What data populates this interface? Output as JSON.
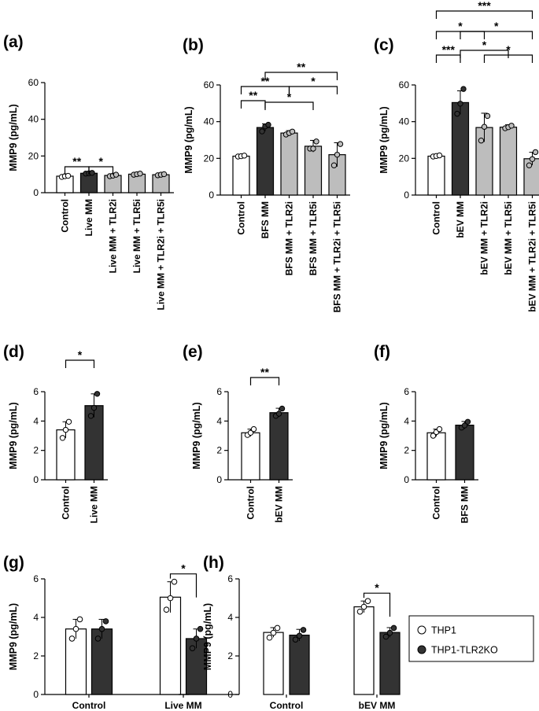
{
  "figure": {
    "legend": {
      "items": [
        {
          "label": "THP1",
          "color": "#ffffff"
        },
        {
          "label": "THP1-TLR2KO",
          "color": "#333333"
        }
      ]
    }
  },
  "chart_data": [
    {
      "id": "a",
      "panel_label": "(a)",
      "type": "bar",
      "ylabel": "MMP9 (pg/mL)",
      "ylim": [
        0,
        60
      ],
      "yticks": [
        0,
        20,
        40,
        60
      ],
      "categories": [
        "Control",
        "Live MM",
        "Live MM + TLR2i",
        "Live MM + TLR5i",
        "Live MM + TLR2i + TLR5i"
      ],
      "values": [
        9,
        10.6,
        9.4,
        10.1,
        9.8
      ],
      "errors": [
        0.4,
        0.3,
        0.5,
        0.4,
        0.4
      ],
      "points": [
        [
          8.6,
          9,
          9.2
        ],
        [
          10.4,
          10.6,
          10.8
        ],
        [
          9,
          9.3,
          9.8
        ],
        [
          9.8,
          10.1,
          10.4
        ],
        [
          9.5,
          9.8,
          10.1
        ]
      ],
      "colors": [
        "#ffffff",
        "#333333",
        "#bdbdbd",
        "#bdbdbd",
        "#bdbdbd"
      ],
      "brackets": [
        {
          "from": 0,
          "to": 1,
          "text": "**"
        },
        {
          "from": 1,
          "to": 2,
          "text": "*"
        }
      ]
    },
    {
      "id": "b",
      "panel_label": "(b)",
      "type": "bar",
      "ylabel": "MMP9 (pg/mL)",
      "ylim": [
        0,
        60
      ],
      "yticks": [
        0,
        20,
        40,
        60
      ],
      "categories": [
        "Control",
        "BFS MM",
        "BFS MM + TLR2i",
        "BFS MM + TLR5i",
        "BFS MM + TLR2i + TLR5i"
      ],
      "values": [
        21.2,
        36.8,
        33.8,
        26.6,
        22
      ],
      "errors": [
        0.5,
        2,
        1.3,
        3.2,
        6.5
      ],
      "points": [
        [
          21,
          21.2,
          21.5
        ],
        [
          34.7,
          37.4,
          38.3
        ],
        [
          33,
          33.8,
          34.6
        ],
        [
          25.3,
          25.3,
          29.2
        ],
        [
          16.2,
          22,
          27.8
        ]
      ],
      "colors": [
        "#ffffff",
        "#333333",
        "#bdbdbd",
        "#bdbdbd",
        "#bdbdbd"
      ],
      "brackets": [
        {
          "from": 0,
          "to": 1,
          "text": "**"
        },
        {
          "from": 0,
          "to": 2,
          "text": "**"
        },
        {
          "from": 1,
          "to": 3,
          "text": "*"
        },
        {
          "from": 2,
          "to": 4,
          "text": "*"
        },
        {
          "from": 1,
          "to": 4,
          "text": "**"
        }
      ]
    },
    {
      "id": "c",
      "panel_label": "(c)",
      "type": "bar",
      "ylabel": "MMP9 (pg/mL)",
      "ylim": [
        0,
        60
      ],
      "yticks": [
        0,
        20,
        40,
        60
      ],
      "categories": [
        "Control",
        "bEV MM",
        "bEV MM + TLR2i",
        "bEV MM + TLR5i",
        "bEV MM + TLR2i + TLR5i"
      ],
      "values": [
        21.2,
        50.4,
        36.8,
        37,
        19.8
      ],
      "errors": [
        0.6,
        6.4,
        7.8,
        1.3,
        3.5
      ],
      "points": [
        [
          21,
          21.3,
          21.6
        ],
        [
          44.3,
          49.8,
          57.8
        ],
        [
          29.7,
          37.2,
          43.1
        ],
        [
          36.4,
          37,
          37.8
        ],
        [
          16.2,
          19.6,
          23.4
        ]
      ],
      "colors": [
        "#ffffff",
        "#333333",
        "#bdbdbd",
        "#bdbdbd",
        "#bdbdbd"
      ],
      "brackets": [
        {
          "from": 0,
          "to": 1,
          "text": "***"
        },
        {
          "from": 0,
          "to": 2,
          "text": "*"
        },
        {
          "from": 2,
          "to": 4,
          "text": "*"
        },
        {
          "from": 1,
          "to": 3,
          "text": "*"
        },
        {
          "from": 1,
          "to": 4,
          "text": "*"
        },
        {
          "from": 0,
          "to": 4,
          "text": "***"
        }
      ]
    },
    {
      "id": "d",
      "panel_label": "(d)",
      "type": "bar",
      "ylabel": "MMP9 (pg/mL)",
      "ylim": [
        0,
        6
      ],
      "yticks": [
        0,
        2,
        4,
        6
      ],
      "categories": [
        "Control",
        "Live MM"
      ],
      "values": [
        3.4,
        5.05
      ],
      "errors": [
        0.55,
        0.8
      ],
      "points": [
        [
          2.85,
          3.4,
          3.95
        ],
        [
          4.35,
          4.9,
          5.85
        ]
      ],
      "colors": [
        "#ffffff",
        "#333333"
      ],
      "brackets": [
        {
          "from": 0,
          "to": 1,
          "text": "*"
        }
      ]
    },
    {
      "id": "e",
      "panel_label": "(e)",
      "type": "bar",
      "ylabel": "MMP9 (pg/mL)",
      "ylim": [
        0,
        6
      ],
      "yticks": [
        0,
        2,
        4,
        6
      ],
      "categories": [
        "Control",
        "bEV MM"
      ],
      "values": [
        3.2,
        4.57
      ],
      "errors": [
        0.25,
        0.3
      ],
      "points": [
        [
          3.05,
          3.2,
          3.45
        ],
        [
          4.35,
          4.5,
          4.85
        ]
      ],
      "colors": [
        "#ffffff",
        "#333333"
      ],
      "brackets": [
        {
          "from": 0,
          "to": 1,
          "text": "**"
        }
      ]
    },
    {
      "id": "f",
      "panel_label": "(f)",
      "type": "bar",
      "ylabel": "MMP9 (pg/mL)",
      "ylim": [
        0,
        6
      ],
      "yticks": [
        0,
        2,
        4,
        6
      ],
      "categories": [
        "Control",
        "BFS MM"
      ],
      "values": [
        3.2,
        3.72
      ],
      "errors": [
        0.25,
        0.25
      ],
      "points": [
        [
          3.0,
          3.25,
          3.45
        ],
        [
          3.55,
          3.7,
          3.95
        ]
      ],
      "colors": [
        "#ffffff",
        "#333333"
      ],
      "brackets": []
    },
    {
      "id": "g",
      "panel_label": "(g)",
      "type": "grouped-bar",
      "ylabel": "MMP9 (pg/mL)",
      "ylim": [
        0,
        6
      ],
      "yticks": [
        0,
        2,
        4,
        6
      ],
      "categories": [
        "Control",
        "Live MM"
      ],
      "series": [
        {
          "color": "#ffffff",
          "values": [
            3.4,
            5.05
          ],
          "errors": [
            0.5,
            0.8
          ],
          "points": [
            [
              2.9,
              3.4,
              3.9
            ],
            [
              4.4,
              5.0,
              5.85
            ]
          ]
        },
        {
          "color": "#333333",
          "values": [
            3.4,
            2.9
          ],
          "errors": [
            0.5,
            0.5
          ],
          "points": [
            [
              2.9,
              3.4,
              3.8
            ],
            [
              2.4,
              2.9,
              3.4
            ]
          ]
        }
      ],
      "brackets": [
        {
          "group": 1,
          "text": "*"
        }
      ]
    },
    {
      "id": "h",
      "panel_label": "(h)",
      "type": "grouped-bar",
      "ylabel": "MMP9 (pg/mL)",
      "ylim": [
        0,
        6
      ],
      "yticks": [
        0,
        2,
        4,
        6
      ],
      "categories": [
        "Control",
        "bEV MM"
      ],
      "series": [
        {
          "color": "#ffffff",
          "values": [
            3.22,
            4.55
          ],
          "errors": [
            0.25,
            0.3
          ],
          "points": [
            [
              2.95,
              3.2,
              3.45
            ],
            [
              4.3,
              4.55,
              4.85
            ]
          ]
        },
        {
          "color": "#333333",
          "values": [
            3.08,
            3.22
          ],
          "errors": [
            0.3,
            0.25
          ],
          "points": [
            [
              2.85,
              3.05,
              3.35
            ],
            [
              3.0,
              3.2,
              3.45
            ]
          ]
        }
      ],
      "brackets": [
        {
          "group": 1,
          "text": "*"
        }
      ]
    }
  ]
}
